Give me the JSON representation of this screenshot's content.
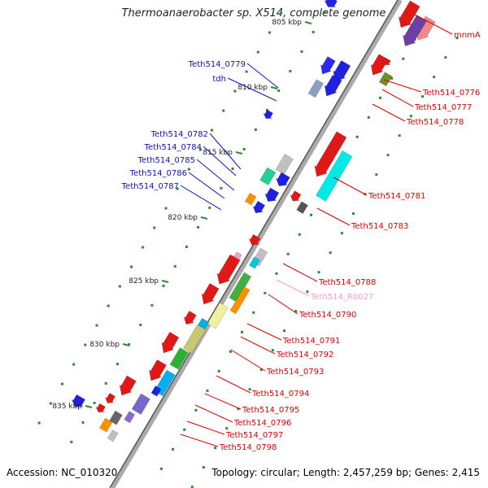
{
  "title": "Thermoanaerobacter sp. X514, complete genome",
  "footer": {
    "accession": "Accession: NC_010320",
    "summary": "Topology: circular; Length: 2,457,259 bp; Genes: 2,415"
  },
  "colors": {
    "backbone": "#888888",
    "tick": "#2e8b2e",
    "left_label": "#1010c0",
    "right_label": "#e00000",
    "rna_label": "#f0a0c0"
  },
  "scale": [
    "805 kbp",
    "810 kbp",
    "815 kbp",
    "820 kbp",
    "825 kbp",
    "830 kbp",
    "835 kbp"
  ],
  "left_labels": [
    "Teth514_0779",
    "tdh",
    "Teth514_0782",
    "Teth514_0784",
    "Teth514_0785",
    "Teth514_0786",
    "Teth514_0787"
  ],
  "right_labels": [
    "mnmA",
    "Teth514_0776",
    "Teth514_0777",
    "Teth514_0778",
    "Teth514_0781",
    "Teth514_0783",
    "Teth514_0788",
    "Teth514_R0027",
    "Teth514_0790",
    "Teth514_0791",
    "Teth514_0792",
    "Teth514_0793",
    "Teth514_0794",
    "Teth514_0795",
    "Teth514_0796",
    "Teth514_0797",
    "Teth514_0798"
  ]
}
